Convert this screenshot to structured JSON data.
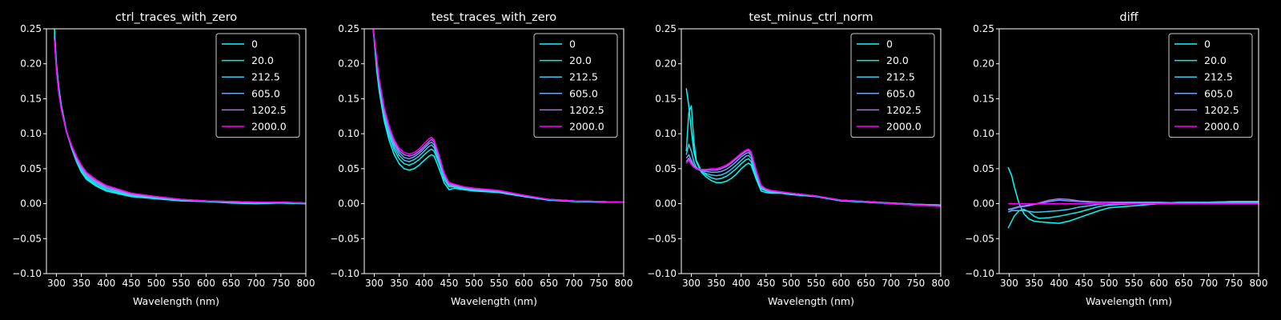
{
  "figure": {
    "background": "#000000",
    "foreground": "#ffffff"
  },
  "chart_data": [
    {
      "type": "line",
      "title": "ctrl_traces_with_zero",
      "xlabel": "Wavelength (nm)",
      "ylabel": "",
      "xlim": [
        280,
        800
      ],
      "ylim": [
        -0.1,
        0.25
      ],
      "xticks": [
        300,
        350,
        400,
        450,
        500,
        550,
        600,
        650,
        700,
        750,
        800
      ],
      "xticklabels": [
        "300",
        "350",
        "400",
        "450",
        "500",
        "550",
        "600",
        "650",
        "700",
        "750",
        "800"
      ],
      "yticks": [
        -0.1,
        -0.05,
        0.0,
        0.05,
        0.1,
        0.15,
        0.2,
        0.25
      ],
      "yticklabels": [
        "−0.10",
        "−0.05",
        "0.00",
        "0.05",
        "0.10",
        "0.15",
        "0.20",
        "0.25"
      ],
      "grid": false,
      "legend": "upper right",
      "x": [
        296,
        300,
        305,
        310,
        320,
        330,
        340,
        350,
        360,
        380,
        400,
        450,
        500,
        550,
        600,
        650,
        700,
        750,
        800
      ],
      "series": [
        {
          "name": "0",
          "color": "#00ffff",
          "values": [
            0.25,
            0.2,
            0.165,
            0.14,
            0.105,
            0.08,
            0.06,
            0.045,
            0.035,
            0.025,
            0.018,
            0.01,
            0.007,
            0.004,
            0.003,
            0.001,
            0.0,
            0.001,
            0.0
          ]
        },
        {
          "name": "20.0",
          "color": "#13ece6",
          "values": [
            0.245,
            0.198,
            0.163,
            0.138,
            0.104,
            0.08,
            0.061,
            0.047,
            0.037,
            0.027,
            0.02,
            0.011,
            0.008,
            0.005,
            0.003,
            0.002,
            0.001,
            0.001,
            0.0
          ]
        },
        {
          "name": "212.5",
          "color": "#37c8f0",
          "values": [
            0.24,
            0.195,
            0.16,
            0.136,
            0.103,
            0.081,
            0.062,
            0.049,
            0.039,
            0.029,
            0.022,
            0.012,
            0.008,
            0.005,
            0.004,
            0.002,
            0.001,
            0.002,
            0.001
          ]
        },
        {
          "name": "605.0",
          "color": "#6ca3f5",
          "values": [
            0.238,
            0.193,
            0.158,
            0.135,
            0.103,
            0.082,
            0.064,
            0.051,
            0.041,
            0.031,
            0.023,
            0.013,
            0.009,
            0.006,
            0.004,
            0.003,
            0.002,
            0.002,
            0.001
          ]
        },
        {
          "name": "1202.5",
          "color": "#aa70f8",
          "values": [
            0.236,
            0.191,
            0.157,
            0.134,
            0.103,
            0.083,
            0.066,
            0.053,
            0.043,
            0.032,
            0.025,
            0.014,
            0.01,
            0.006,
            0.004,
            0.003,
            0.002,
            0.002,
            0.001
          ]
        },
        {
          "name": "2000.0",
          "color": "#ff00ff",
          "values": [
            0.234,
            0.19,
            0.156,
            0.134,
            0.104,
            0.084,
            0.068,
            0.055,
            0.045,
            0.034,
            0.026,
            0.015,
            0.01,
            0.006,
            0.004,
            0.003,
            0.002,
            0.002,
            0.001
          ]
        }
      ]
    },
    {
      "type": "line",
      "title": "test_traces_with_zero",
      "xlabel": "Wavelength (nm)",
      "ylabel": "",
      "xlim": [
        280,
        800
      ],
      "ylim": [
        -0.1,
        0.25
      ],
      "xticks": [
        300,
        350,
        400,
        450,
        500,
        550,
        600,
        650,
        700,
        750,
        800
      ],
      "xticklabels": [
        "300",
        "350",
        "400",
        "450",
        "500",
        "550",
        "600",
        "650",
        "700",
        "750",
        "800"
      ],
      "yticks": [
        -0.1,
        -0.05,
        0.0,
        0.05,
        0.1,
        0.15,
        0.2,
        0.25
      ],
      "yticklabels": [
        "−0.10",
        "−0.05",
        "0.00",
        "0.05",
        "0.10",
        "0.15",
        "0.20",
        "0.25"
      ],
      "grid": false,
      "legend": "upper right",
      "x": [
        298,
        305,
        310,
        320,
        330,
        340,
        350,
        360,
        370,
        380,
        390,
        400,
        410,
        415,
        420,
        430,
        440,
        450,
        460,
        480,
        500,
        550,
        600,
        650,
        700,
        750,
        800
      ],
      "series": [
        {
          "name": "0",
          "color": "#00ffff",
          "values": [
            0.25,
            0.19,
            0.16,
            0.118,
            0.09,
            0.07,
            0.057,
            0.05,
            0.048,
            0.05,
            0.055,
            0.062,
            0.068,
            0.07,
            0.068,
            0.05,
            0.03,
            0.02,
            0.022,
            0.02,
            0.018,
            0.016,
            0.01,
            0.005,
            0.003,
            0.002,
            0.002
          ]
        },
        {
          "name": "20.0",
          "color": "#13ece6",
          "values": [
            0.25,
            0.195,
            0.165,
            0.123,
            0.096,
            0.077,
            0.064,
            0.057,
            0.055,
            0.058,
            0.063,
            0.07,
            0.076,
            0.078,
            0.075,
            0.057,
            0.035,
            0.024,
            0.024,
            0.021,
            0.019,
            0.017,
            0.011,
            0.006,
            0.004,
            0.003,
            0.002
          ]
        },
        {
          "name": "212.5",
          "color": "#37c8f0",
          "values": [
            0.25,
            0.2,
            0.17,
            0.127,
            0.1,
            0.081,
            0.069,
            0.062,
            0.06,
            0.063,
            0.068,
            0.075,
            0.082,
            0.084,
            0.08,
            0.061,
            0.038,
            0.026,
            0.025,
            0.022,
            0.02,
            0.018,
            0.011,
            0.006,
            0.004,
            0.003,
            0.002
          ]
        },
        {
          "name": "605.0",
          "color": "#6ca3f5",
          "values": [
            0.25,
            0.203,
            0.173,
            0.131,
            0.104,
            0.085,
            0.073,
            0.066,
            0.064,
            0.067,
            0.072,
            0.079,
            0.086,
            0.088,
            0.084,
            0.064,
            0.04,
            0.027,
            0.026,
            0.023,
            0.021,
            0.018,
            0.011,
            0.006,
            0.004,
            0.003,
            0.002
          ]
        },
        {
          "name": "1202.5",
          "color": "#aa70f8",
          "values": [
            0.25,
            0.206,
            0.176,
            0.134,
            0.107,
            0.088,
            0.076,
            0.07,
            0.068,
            0.07,
            0.075,
            0.082,
            0.089,
            0.092,
            0.088,
            0.067,
            0.042,
            0.029,
            0.027,
            0.024,
            0.021,
            0.018,
            0.012,
            0.006,
            0.004,
            0.003,
            0.002
          ]
        },
        {
          "name": "2000.0",
          "color": "#ff00ff",
          "values": [
            0.25,
            0.208,
            0.178,
            0.137,
            0.11,
            0.091,
            0.079,
            0.073,
            0.071,
            0.073,
            0.078,
            0.086,
            0.093,
            0.095,
            0.091,
            0.069,
            0.044,
            0.03,
            0.028,
            0.024,
            0.022,
            0.019,
            0.012,
            0.006,
            0.004,
            0.003,
            0.002
          ]
        }
      ]
    },
    {
      "type": "line",
      "title": "test_minus_ctrl_norm",
      "xlabel": "Wavelength (nm)",
      "ylabel": "",
      "xlim": [
        280,
        800
      ],
      "ylim": [
        -0.1,
        0.25
      ],
      "xticks": [
        300,
        350,
        400,
        450,
        500,
        550,
        600,
        650,
        700,
        750,
        800
      ],
      "xticklabels": [
        "300",
        "350",
        "400",
        "450",
        "500",
        "550",
        "600",
        "650",
        "700",
        "750",
        "800"
      ],
      "yticks": [
        -0.1,
        -0.05,
        0.0,
        0.05,
        0.1,
        0.15,
        0.2,
        0.25
      ],
      "yticklabels": [
        "−0.10",
        "−0.05",
        "0.00",
        "0.05",
        "0.10",
        "0.15",
        "0.20",
        "0.25"
      ],
      "grid": false,
      "legend": "upper right",
      "x": [
        290,
        295,
        300,
        305,
        310,
        320,
        330,
        340,
        350,
        360,
        370,
        380,
        390,
        400,
        410,
        415,
        420,
        430,
        440,
        450,
        460,
        480,
        500,
        550,
        600,
        650,
        700,
        750,
        800
      ],
      "series": [
        {
          "name": "0",
          "color": "#00ffff",
          "values": [
            0.165,
            0.14,
            0.105,
            0.075,
            0.06,
            0.045,
            0.038,
            0.033,
            0.03,
            0.03,
            0.032,
            0.036,
            0.042,
            0.05,
            0.056,
            0.058,
            0.055,
            0.035,
            0.018,
            0.016,
            0.015,
            0.015,
            0.013,
            0.01,
            0.004,
            0.002,
            0.0,
            -0.002,
            -0.003
          ]
        },
        {
          "name": "20.0",
          "color": "#13ece6",
          "values": [
            0.075,
            0.13,
            0.14,
            0.09,
            0.062,
            0.047,
            0.041,
            0.037,
            0.035,
            0.036,
            0.039,
            0.044,
            0.05,
            0.057,
            0.063,
            0.064,
            0.06,
            0.039,
            0.021,
            0.018,
            0.016,
            0.015,
            0.014,
            0.011,
            0.005,
            0.003,
            0.001,
            -0.001,
            -0.002
          ]
        },
        {
          "name": "212.5",
          "color": "#37c8f0",
          "values": [
            0.07,
            0.085,
            0.075,
            0.06,
            0.052,
            0.046,
            0.043,
            0.041,
            0.04,
            0.041,
            0.044,
            0.049,
            0.055,
            0.062,
            0.068,
            0.069,
            0.065,
            0.042,
            0.022,
            0.019,
            0.017,
            0.016,
            0.014,
            0.011,
            0.005,
            0.003,
            0.001,
            -0.001,
            -0.002
          ]
        },
        {
          "name": "605.0",
          "color": "#6ca3f5",
          "values": [
            0.065,
            0.07,
            0.062,
            0.055,
            0.05,
            0.047,
            0.046,
            0.045,
            0.045,
            0.046,
            0.049,
            0.054,
            0.06,
            0.067,
            0.072,
            0.073,
            0.069,
            0.045,
            0.024,
            0.02,
            0.018,
            0.016,
            0.015,
            0.011,
            0.005,
            0.003,
            0.001,
            -0.001,
            -0.002
          ]
        },
        {
          "name": "1202.5",
          "color": "#aa70f8",
          "values": [
            0.06,
            0.065,
            0.058,
            0.053,
            0.05,
            0.048,
            0.048,
            0.048,
            0.048,
            0.05,
            0.053,
            0.058,
            0.064,
            0.07,
            0.075,
            0.076,
            0.072,
            0.047,
            0.025,
            0.021,
            0.018,
            0.017,
            0.015,
            0.011,
            0.005,
            0.003,
            0.001,
            -0.002,
            -0.003
          ]
        },
        {
          "name": "2000.0",
          "color": "#ff00ff",
          "values": [
            0.058,
            0.062,
            0.056,
            0.052,
            0.05,
            0.049,
            0.049,
            0.05,
            0.05,
            0.052,
            0.055,
            0.06,
            0.066,
            0.072,
            0.077,
            0.078,
            0.074,
            0.048,
            0.026,
            0.021,
            0.019,
            0.017,
            0.015,
            0.011,
            0.005,
            0.003,
            0.0,
            -0.002,
            -0.004
          ]
        }
      ]
    },
    {
      "type": "line",
      "title": "diff",
      "xlabel": "Wavelength (nm)",
      "ylabel": "",
      "xlim": [
        280,
        800
      ],
      "ylim": [
        -0.1,
        0.25
      ],
      "xticks": [
        300,
        350,
        400,
        450,
        500,
        550,
        600,
        650,
        700,
        750,
        800
      ],
      "xticklabels": [
        "300",
        "350",
        "400",
        "450",
        "500",
        "550",
        "600",
        "650",
        "700",
        "750",
        "800"
      ],
      "yticks": [
        -0.1,
        -0.05,
        0.0,
        0.05,
        0.1,
        0.15,
        0.2,
        0.25
      ],
      "yticklabels": [
        "−0.10",
        "−0.05",
        "0.00",
        "0.05",
        "0.10",
        "0.15",
        "0.20",
        "0.25"
      ],
      "grid": false,
      "legend": "upper right",
      "x": [
        298,
        305,
        310,
        320,
        330,
        340,
        350,
        360,
        380,
        400,
        420,
        440,
        460,
        480,
        500,
        550,
        600,
        650,
        700,
        750,
        800
      ],
      "series": [
        {
          "name": "0",
          "color": "#00ffff",
          "values": [
            0.052,
            0.04,
            0.025,
            0.0,
            -0.015,
            -0.022,
            -0.025,
            -0.026,
            -0.027,
            -0.028,
            -0.025,
            -0.02,
            -0.015,
            -0.01,
            -0.006,
            -0.003,
            0.0,
            0.001,
            0.002,
            0.003,
            0.003
          ]
        },
        {
          "name": "20.0",
          "color": "#13ece6",
          "values": [
            -0.035,
            -0.025,
            -0.018,
            -0.01,
            -0.008,
            -0.012,
            -0.018,
            -0.021,
            -0.02,
            -0.018,
            -0.015,
            -0.012,
            -0.008,
            -0.004,
            -0.002,
            0.0,
            0.001,
            0.002,
            0.002,
            0.003,
            0.003
          ]
        },
        {
          "name": "212.5",
          "color": "#37c8f0",
          "values": [
            -0.012,
            -0.01,
            -0.01,
            -0.01,
            -0.01,
            -0.011,
            -0.012,
            -0.012,
            -0.011,
            -0.01,
            -0.008,
            -0.005,
            -0.003,
            -0.001,
            0.0,
            0.001,
            0.001,
            0.002,
            0.002,
            0.002,
            0.002
          ]
        },
        {
          "name": "605.0",
          "color": "#6ca3f5",
          "values": [
            -0.008,
            -0.007,
            -0.006,
            -0.004,
            -0.003,
            -0.002,
            -0.001,
            0.0,
            0.003,
            0.005,
            0.004,
            0.003,
            0.002,
            0.002,
            0.002,
            0.002,
            0.002,
            0.001,
            0.001,
            0.001,
            0.001
          ]
        },
        {
          "name": "1202.5",
          "color": "#aa70f8",
          "values": [
            -0.009,
            -0.008,
            -0.007,
            -0.005,
            -0.004,
            -0.003,
            -0.001,
            0.001,
            0.005,
            0.007,
            0.006,
            0.004,
            0.003,
            0.002,
            0.002,
            0.001,
            0.001,
            0.001,
            0.0,
            0.0,
            0.0
          ]
        },
        {
          "name": "2000.0",
          "color": "#ff00ff",
          "values": [
            0.0,
            0.0,
            0.0,
            0.0,
            0.0,
            0.0,
            0.0,
            0.0,
            0.0,
            0.0,
            0.0,
            0.0,
            0.0,
            0.0,
            0.0,
            0.0,
            0.0,
            0.0,
            0.0,
            0.0,
            0.0
          ]
        }
      ]
    }
  ]
}
